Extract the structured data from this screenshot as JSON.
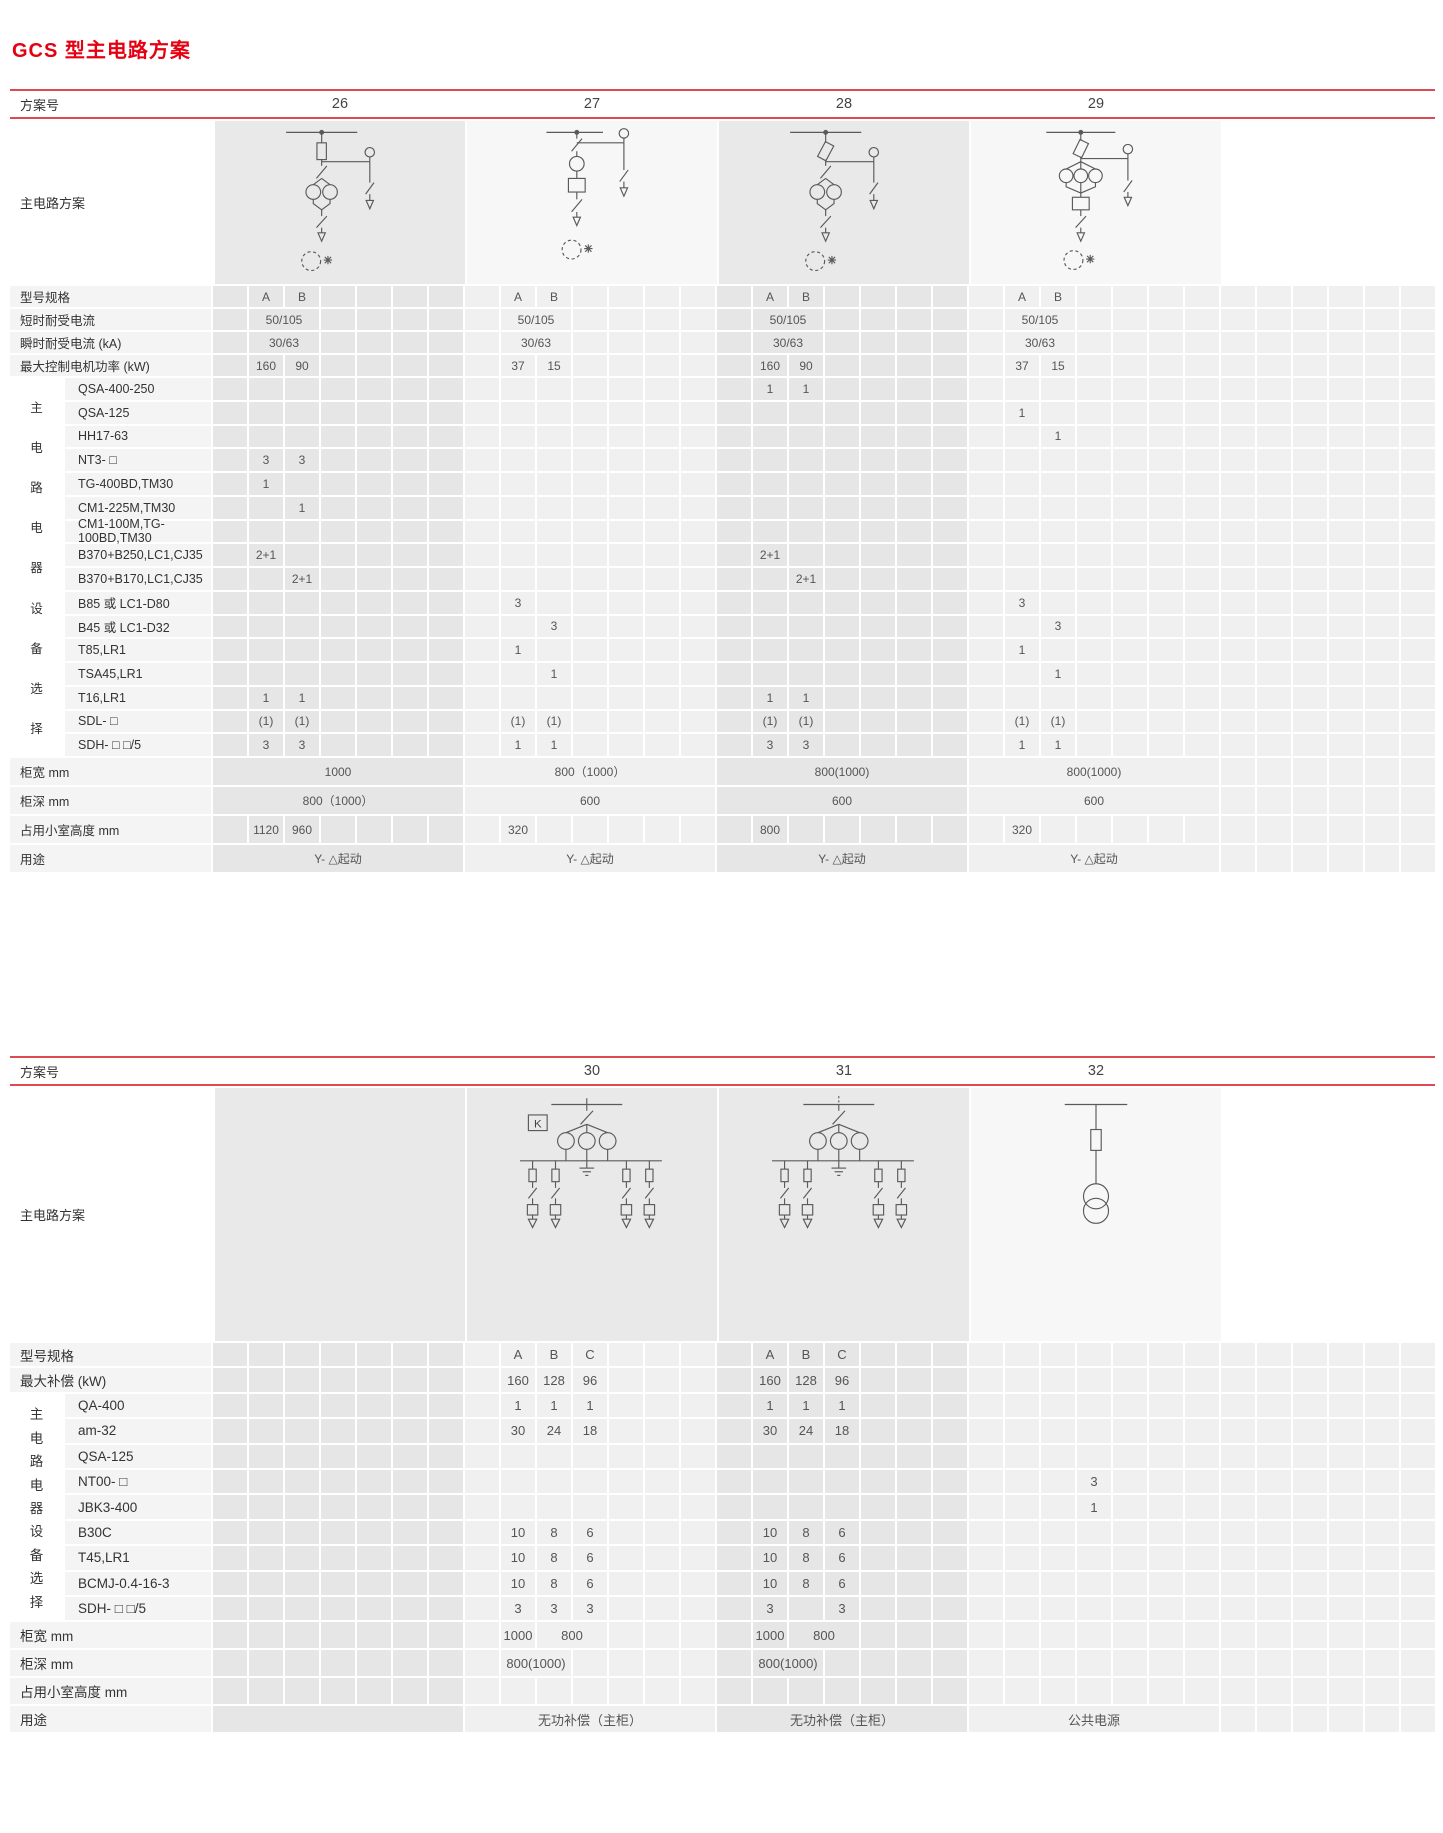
{
  "page_title": "GCS 型主电路方案",
  "colors": {
    "accent_red": "#e50012",
    "rule_red": "#dd4a51"
  },
  "table1": {
    "header_label": "方案号",
    "diagram_label": "主电路方案",
    "group_label": "主电路电器设备选择",
    "schemes": [
      "26",
      "27",
      "28",
      "29"
    ],
    "rows": [
      {
        "label": "型号规格",
        "g": 0,
        "v": [
          [
            0,
            1,
            1,
            "A"
          ],
          [
            0,
            2,
            1,
            "B"
          ],
          [
            1,
            1,
            1,
            "A"
          ],
          [
            1,
            2,
            1,
            "B"
          ],
          [
            2,
            1,
            1,
            "A"
          ],
          [
            2,
            2,
            1,
            "B"
          ],
          [
            3,
            1,
            1,
            "A"
          ],
          [
            3,
            2,
            1,
            "B"
          ]
        ]
      },
      {
        "label": "短时耐受电流",
        "g": 0,
        "v": [
          [
            0,
            1,
            2,
            "50/105"
          ],
          [
            1,
            1,
            2,
            "50/105"
          ],
          [
            2,
            1,
            2,
            "50/105"
          ],
          [
            3,
            1,
            2,
            "50/105"
          ]
        ]
      },
      {
        "label": "瞬时耐受电流 (kA)",
        "g": 0,
        "v": [
          [
            0,
            1,
            2,
            "30/63"
          ],
          [
            1,
            1,
            2,
            "30/63"
          ],
          [
            2,
            1,
            2,
            "30/63"
          ],
          [
            3,
            1,
            2,
            "30/63"
          ]
        ]
      },
      {
        "label": "最大控制电机功率 (kW)",
        "g": 0,
        "v": [
          [
            0,
            1,
            1,
            "160"
          ],
          [
            0,
            2,
            1,
            "90"
          ],
          [
            1,
            1,
            1,
            "37"
          ],
          [
            1,
            2,
            1,
            "15"
          ],
          [
            2,
            1,
            1,
            "160"
          ],
          [
            2,
            2,
            1,
            "90"
          ],
          [
            3,
            1,
            1,
            "37"
          ],
          [
            3,
            2,
            1,
            "15"
          ]
        ]
      },
      {
        "label": "QSA-400-250",
        "g": 1,
        "v": [
          [
            2,
            1,
            1,
            "1"
          ],
          [
            2,
            2,
            1,
            "1"
          ]
        ]
      },
      {
        "label": "QSA-125",
        "g": 1,
        "v": [
          [
            3,
            1,
            1,
            "1"
          ]
        ]
      },
      {
        "label": "HH17-63",
        "g": 1,
        "v": [
          [
            3,
            2,
            1,
            "1"
          ]
        ]
      },
      {
        "label": "NT3- □",
        "g": 1,
        "v": [
          [
            0,
            1,
            1,
            "3"
          ],
          [
            0,
            2,
            1,
            "3"
          ]
        ]
      },
      {
        "label": "TG-400BD,TM30",
        "g": 1,
        "v": [
          [
            0,
            1,
            1,
            "1"
          ]
        ]
      },
      {
        "label": "CM1-225M,TM30",
        "g": 1,
        "v": [
          [
            0,
            2,
            1,
            "1"
          ]
        ]
      },
      {
        "label": "CM1-100M,TG-100BD,TM30",
        "g": 1,
        "v": []
      },
      {
        "label": "B370+B250,LC1,CJ35",
        "g": 1,
        "v": [
          [
            0,
            1,
            1,
            "2+1"
          ],
          [
            2,
            1,
            1,
            "2+1"
          ]
        ]
      },
      {
        "label": "B370+B170,LC1,CJ35",
        "g": 1,
        "v": [
          [
            0,
            2,
            1,
            "2+1"
          ],
          [
            2,
            2,
            1,
            "2+1"
          ]
        ]
      },
      {
        "label": "B85 或 LC1-D80",
        "g": 1,
        "v": [
          [
            1,
            1,
            1,
            "3"
          ],
          [
            3,
            1,
            1,
            "3"
          ]
        ]
      },
      {
        "label": "B45 或 LC1-D32",
        "g": 1,
        "v": [
          [
            1,
            2,
            1,
            "3"
          ],
          [
            3,
            2,
            1,
            "3"
          ]
        ]
      },
      {
        "label": "T85,LR1",
        "g": 1,
        "v": [
          [
            1,
            1,
            1,
            "1"
          ],
          [
            3,
            1,
            1,
            "1"
          ]
        ]
      },
      {
        "label": "TSA45,LR1",
        "g": 1,
        "v": [
          [
            1,
            2,
            1,
            "1"
          ],
          [
            3,
            2,
            1,
            "1"
          ]
        ]
      },
      {
        "label": "T16,LR1",
        "g": 1,
        "v": [
          [
            0,
            1,
            1,
            "1"
          ],
          [
            0,
            2,
            1,
            "1"
          ],
          [
            2,
            1,
            1,
            "1"
          ],
          [
            2,
            2,
            1,
            "1"
          ]
        ]
      },
      {
        "label": "SDL- □",
        "g": 1,
        "v": [
          [
            0,
            1,
            1,
            "(1)"
          ],
          [
            0,
            2,
            1,
            "(1)"
          ],
          [
            1,
            1,
            1,
            "(1)"
          ],
          [
            1,
            2,
            1,
            "(1)"
          ],
          [
            2,
            1,
            1,
            "(1)"
          ],
          [
            2,
            2,
            1,
            "(1)"
          ],
          [
            3,
            1,
            1,
            "(1)"
          ],
          [
            3,
            2,
            1,
            "(1)"
          ]
        ]
      },
      {
        "label": "SDH- □ □/5",
        "g": 1,
        "v": [
          [
            0,
            1,
            1,
            "3"
          ],
          [
            0,
            2,
            1,
            "3"
          ],
          [
            1,
            1,
            1,
            "1"
          ],
          [
            1,
            2,
            1,
            "1"
          ],
          [
            2,
            1,
            1,
            "3"
          ],
          [
            2,
            2,
            1,
            "3"
          ],
          [
            3,
            1,
            1,
            "1"
          ],
          [
            3,
            2,
            1,
            "1"
          ]
        ]
      },
      {
        "label": "柜宽 mm",
        "g": 0,
        "v": [
          [
            0,
            0,
            7,
            "1000"
          ],
          [
            1,
            0,
            7,
            "800（1000）"
          ],
          [
            2,
            0,
            7,
            "800(1000)"
          ],
          [
            3,
            0,
            7,
            "800(1000)"
          ]
        ]
      },
      {
        "label": "柜深 mm",
        "g": 0,
        "v": [
          [
            0,
            0,
            7,
            "800（1000）"
          ],
          [
            1,
            0,
            7,
            "600"
          ],
          [
            2,
            0,
            7,
            "600"
          ],
          [
            3,
            0,
            7,
            "600"
          ]
        ]
      },
      {
        "label": "占用小室高度 mm",
        "g": 0,
        "v": [
          [
            0,
            1,
            1,
            "1120"
          ],
          [
            0,
            2,
            1,
            "960"
          ],
          [
            1,
            1,
            1,
            "320"
          ],
          [
            2,
            1,
            1,
            "800"
          ],
          [
            3,
            1,
            1,
            "320"
          ]
        ]
      },
      {
        "label": "用途",
        "g": 0,
        "v": [
          [
            0,
            0,
            7,
            "Y- △起动"
          ],
          [
            1,
            0,
            7,
            "Y- △起动"
          ],
          [
            2,
            0,
            7,
            "Y- △起动"
          ],
          [
            3,
            0,
            7,
            "Y- △起动"
          ]
        ]
      }
    ]
  },
  "table2": {
    "header_label": "方案号",
    "diagram_label": "主电路方案",
    "group_label": "主电路电器设备选择",
    "k_label": "K",
    "schemes": [
      "",
      "30",
      "31",
      "32"
    ],
    "rows": [
      {
        "label": "型号规格",
        "g": 0,
        "v": [
          [
            1,
            1,
            1,
            "A"
          ],
          [
            1,
            2,
            1,
            "B"
          ],
          [
            1,
            3,
            1,
            "C"
          ],
          [
            2,
            1,
            1,
            "A"
          ],
          [
            2,
            2,
            1,
            "B"
          ],
          [
            2,
            3,
            1,
            "C"
          ]
        ]
      },
      {
        "label": "最大补偿 (kW)",
        "g": 0,
        "v": [
          [
            1,
            1,
            1,
            "160"
          ],
          [
            1,
            2,
            1,
            "128"
          ],
          [
            1,
            3,
            1,
            "96"
          ],
          [
            2,
            1,
            1,
            "160"
          ],
          [
            2,
            2,
            1,
            "128"
          ],
          [
            2,
            3,
            1,
            "96"
          ]
        ]
      },
      {
        "label": "QA-400",
        "g": 1,
        "v": [
          [
            1,
            1,
            1,
            "1"
          ],
          [
            1,
            2,
            1,
            "1"
          ],
          [
            1,
            3,
            1,
            "1"
          ],
          [
            2,
            1,
            1,
            "1"
          ],
          [
            2,
            2,
            1,
            "1"
          ],
          [
            2,
            3,
            1,
            "1"
          ]
        ]
      },
      {
        "label": "am-32",
        "g": 1,
        "v": [
          [
            1,
            1,
            1,
            "30"
          ],
          [
            1,
            2,
            1,
            "24"
          ],
          [
            1,
            3,
            1,
            "18"
          ],
          [
            2,
            1,
            1,
            "30"
          ],
          [
            2,
            2,
            1,
            "24"
          ],
          [
            2,
            3,
            1,
            "18"
          ]
        ]
      },
      {
        "label": "QSA-125",
        "g": 1,
        "v": []
      },
      {
        "label": "NT00- □",
        "g": 1,
        "v": [
          [
            3,
            3,
            1,
            "3"
          ]
        ]
      },
      {
        "label": "JBK3-400",
        "g": 1,
        "v": [
          [
            3,
            3,
            1,
            "1"
          ]
        ]
      },
      {
        "label": "B30C",
        "g": 1,
        "v": [
          [
            1,
            1,
            1,
            "10"
          ],
          [
            1,
            2,
            1,
            "8"
          ],
          [
            1,
            3,
            1,
            "6"
          ],
          [
            2,
            1,
            1,
            "10"
          ],
          [
            2,
            2,
            1,
            "8"
          ],
          [
            2,
            3,
            1,
            "6"
          ]
        ]
      },
      {
        "label": "T45,LR1",
        "g": 1,
        "v": [
          [
            1,
            1,
            1,
            "10"
          ],
          [
            1,
            2,
            1,
            "8"
          ],
          [
            1,
            3,
            1,
            "6"
          ],
          [
            2,
            1,
            1,
            "10"
          ],
          [
            2,
            2,
            1,
            "8"
          ],
          [
            2,
            3,
            1,
            "6"
          ]
        ]
      },
      {
        "label": "BCMJ-0.4-16-3",
        "g": 1,
        "v": [
          [
            1,
            1,
            1,
            "10"
          ],
          [
            1,
            2,
            1,
            "8"
          ],
          [
            1,
            3,
            1,
            "6"
          ],
          [
            2,
            1,
            1,
            "10"
          ],
          [
            2,
            2,
            1,
            "8"
          ],
          [
            2,
            3,
            1,
            "6"
          ]
        ]
      },
      {
        "label": "SDH- □ □/5",
        "g": 1,
        "v": [
          [
            1,
            1,
            1,
            "3"
          ],
          [
            1,
            2,
            1,
            "3"
          ],
          [
            1,
            3,
            1,
            "3"
          ],
          [
            2,
            1,
            1,
            "3"
          ],
          [
            2,
            3,
            1,
            "3"
          ]
        ]
      },
      {
        "label": "柜宽 mm",
        "g": 0,
        "v": [
          [
            1,
            1,
            1,
            "1000"
          ],
          [
            1,
            2,
            2,
            "800"
          ],
          [
            2,
            1,
            1,
            "1000"
          ],
          [
            2,
            2,
            2,
            "800"
          ]
        ]
      },
      {
        "label": "柜深 mm",
        "g": 0,
        "v": [
          [
            1,
            1,
            2,
            "800(1000)"
          ],
          [
            2,
            1,
            2,
            "800(1000)"
          ]
        ]
      },
      {
        "label": "占用小室高度 mm",
        "g": 0,
        "v": []
      },
      {
        "label": "用途",
        "g": 0,
        "v": [
          [
            0,
            0,
            7,
            ""
          ],
          [
            1,
            0,
            7,
            "无功补偿（主柜）"
          ],
          [
            2,
            0,
            7,
            "无功补偿（主柜）"
          ],
          [
            3,
            0,
            7,
            "公共电源"
          ]
        ]
      }
    ]
  }
}
